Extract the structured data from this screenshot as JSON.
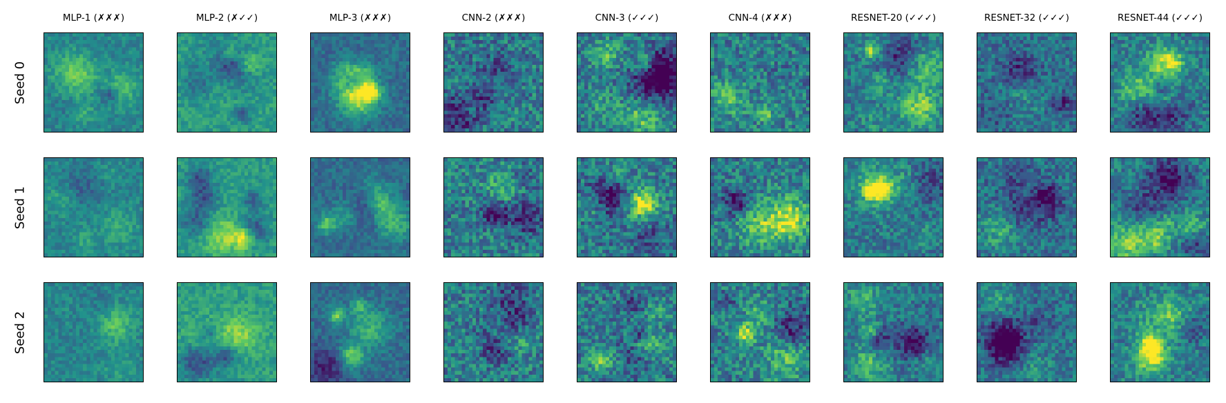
{
  "figure": {
    "columns": [
      {
        "title": "MLP-1 (✗✗✗)"
      },
      {
        "title": "MLP-2 (✗✓✓)"
      },
      {
        "title": "MLP-3 (✗✗✗)"
      },
      {
        "title": "CNN-2 (✗✗✗)"
      },
      {
        "title": "CNN-3 (✓✓✓)"
      },
      {
        "title": "CNN-4 (✗✗✗)"
      },
      {
        "title": "RESNET-20 (✓✓✓)"
      },
      {
        "title": "RESNET-32 (✓✓✓)"
      },
      {
        "title": "RESNET-44 (✓✓✓)"
      }
    ],
    "rows": [
      {
        "label": "Seed 0"
      },
      {
        "label": "Seed 1"
      },
      {
        "label": "Seed 2"
      }
    ],
    "colormap": [
      "#440154",
      "#3b528b",
      "#21918c",
      "#5ec962",
      "#fde725"
    ]
  }
}
